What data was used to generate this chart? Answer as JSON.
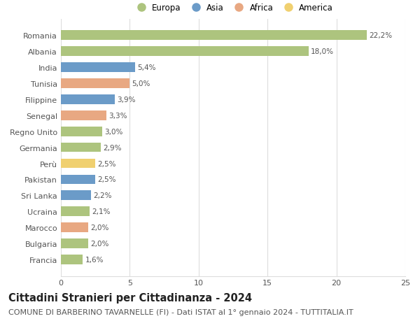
{
  "categories": [
    "Francia",
    "Bulgaria",
    "Marocco",
    "Ucraina",
    "Sri Lanka",
    "Pakistan",
    "Perù",
    "Germania",
    "Regno Unito",
    "Senegal",
    "Filippine",
    "Tunisia",
    "India",
    "Albania",
    "Romania"
  ],
  "values": [
    1.6,
    2.0,
    2.0,
    2.1,
    2.2,
    2.5,
    2.5,
    2.9,
    3.0,
    3.3,
    3.9,
    5.0,
    5.4,
    18.0,
    22.2
  ],
  "labels": [
    "1,6%",
    "2,0%",
    "2,0%",
    "2,1%",
    "2,2%",
    "2,5%",
    "2,5%",
    "2,9%",
    "3,0%",
    "3,3%",
    "3,9%",
    "5,0%",
    "5,4%",
    "18,0%",
    "22,2%"
  ],
  "colors": [
    "#adc47e",
    "#adc47e",
    "#e8a882",
    "#adc47e",
    "#6b9bc8",
    "#6b9bc8",
    "#f0d070",
    "#adc47e",
    "#adc47e",
    "#e8a882",
    "#6b9bc8",
    "#e8a882",
    "#6b9bc8",
    "#adc47e",
    "#adc47e"
  ],
  "legend_labels": [
    "Europa",
    "Asia",
    "Africa",
    "America"
  ],
  "legend_colors": [
    "#adc47e",
    "#6b9bc8",
    "#e8a882",
    "#f0d070"
  ],
  "title": "Cittadini Stranieri per Cittadinanza - 2024",
  "subtitle": "COMUNE DI BARBERINO TAVARNELLE (FI) - Dati ISTAT al 1° gennaio 2024 - TUTTITALIA.IT",
  "xlim": [
    0,
    25
  ],
  "xticks": [
    0,
    5,
    10,
    15,
    20,
    25
  ],
  "background_color": "#ffffff",
  "grid_color": "#dddddd",
  "bar_height": 0.6,
  "title_fontsize": 10.5,
  "subtitle_fontsize": 8,
  "label_fontsize": 7.5,
  "tick_fontsize": 8,
  "legend_fontsize": 8.5
}
